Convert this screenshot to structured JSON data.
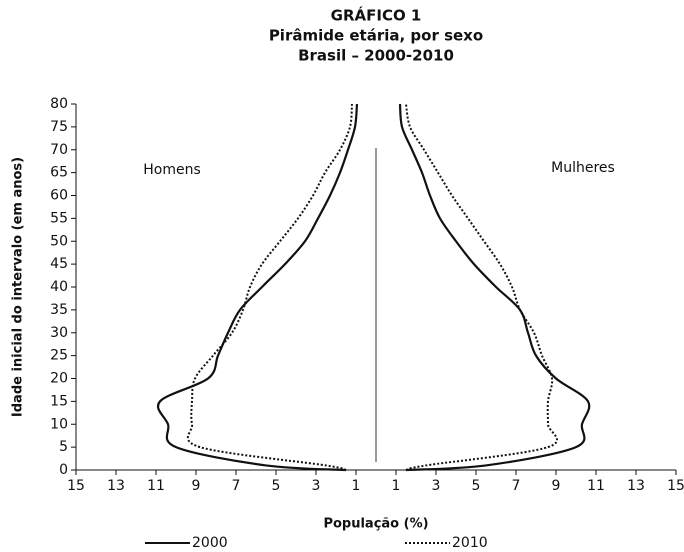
{
  "chart_data": {
    "type": "line",
    "title": [
      "GRÁFICO 1",
      "Pirâmide etária, por sexo",
      "Brasil – 2000-2010"
    ],
    "xlabel": "População (%)",
    "ylabel": "Idade inicial do intervalo (em anos)",
    "ages": [
      0,
      1,
      5,
      10,
      15,
      20,
      25,
      30,
      35,
      40,
      45,
      50,
      55,
      60,
      65,
      70,
      75,
      80
    ],
    "ylim": [
      0,
      80
    ],
    "yticks": [
      0,
      5,
      10,
      15,
      20,
      25,
      30,
      35,
      40,
      45,
      50,
      55,
      60,
      65,
      70,
      75,
      80
    ],
    "xlim": [
      0,
      15
    ],
    "xticks": [
      15,
      13,
      11,
      9,
      7,
      5,
      3,
      1
    ],
    "legend": [
      {
        "name": "2000",
        "dash": "solid"
      },
      {
        "name": "2010",
        "dash": "dotted"
      }
    ],
    "color": "#111111",
    "sides": [
      {
        "label": "Homens",
        "series": [
          {
            "values": [
              1.5,
              5.5,
              10,
              10.4,
              10.8,
              8.4,
              7.9,
              7.4,
              6.8,
              5.7,
              4.55,
              3.55,
              2.9,
              2.3,
              1.8,
              1.4,
              1.05,
              0.95
            ]
          },
          {
            "values": [
              1.5,
              2.5,
              8.8,
              9.2,
              9.2,
              9.05,
              8.15,
              7.2,
              6.65,
              6.3,
              5.7,
              4.8,
              3.9,
              3.15,
              2.55,
              1.8,
              1.3,
              1.2
            ]
          }
        ]
      },
      {
        "label": "Mulheres",
        "series": [
          {
            "values": [
              1.5,
              5.5,
              10,
              10.3,
              10.6,
              9.0,
              8.0,
              7.6,
              7.2,
              6.0,
              4.9,
              4.0,
              3.2,
              2.7,
              2.3,
              1.8,
              1.3,
              1.2
            ]
          },
          {
            "values": [
              1.5,
              2.5,
              8.6,
              8.6,
              8.6,
              8.8,
              8.3,
              7.9,
              7.2,
              6.8,
              6.2,
              5.4,
              4.6,
              3.8,
              3.1,
              2.4,
              1.7,
              1.5
            ]
          }
        ]
      }
    ]
  }
}
